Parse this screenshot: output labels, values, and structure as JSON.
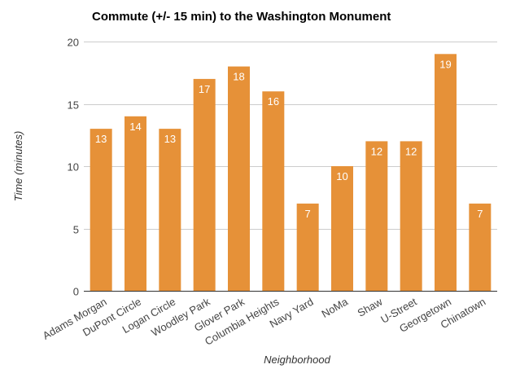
{
  "chart_data": {
    "type": "bar",
    "title": "Commute (+/- 15 min) to the Washington Monument",
    "xlabel": "Neighborhood",
    "ylabel": "Time (minutes)",
    "categories": [
      "Adams Morgan",
      "DuPont Circle",
      "Logan Circle",
      "Woodley Park",
      "Glover Park",
      "Columbia Heights",
      "Navy Yard",
      "NoMa",
      "Shaw",
      "U-Street",
      "Georgetown",
      "Chinatown"
    ],
    "values": [
      13,
      14,
      13,
      17,
      18,
      16,
      7,
      10,
      12,
      12,
      19,
      7
    ],
    "ylim": [
      0,
      20
    ],
    "yticks": [
      "0",
      "5",
      "10",
      "15",
      "20"
    ],
    "grid": true,
    "legend": "none",
    "data_labels": true,
    "bar_color": "#E69138",
    "data_label_color": "#ffffff"
  }
}
